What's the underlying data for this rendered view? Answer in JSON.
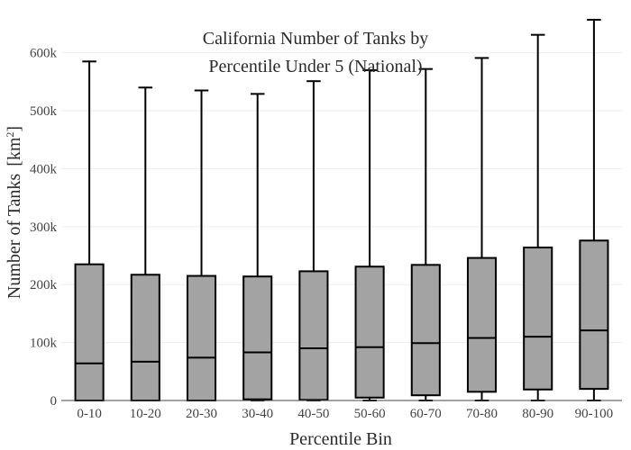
{
  "chart_data": {
    "type": "box",
    "title_lines": [
      "California Number of Tanks by",
      "Percentile Under 5 (National)"
    ],
    "xlabel": "Percentile Bin",
    "ylabel": "Number of Tanks",
    "ylabel_unit_base": "[km",
    "ylabel_unit_sup": "2",
    "ylabel_unit_close": "]",
    "ylim": [
      0,
      660000
    ],
    "yticks": [
      {
        "value": 0,
        "label": "0"
      },
      {
        "value": 100000,
        "label": "100k"
      },
      {
        "value": 200000,
        "label": "200k"
      },
      {
        "value": 300000,
        "label": "300k"
      },
      {
        "value": 400000,
        "label": "400k"
      },
      {
        "value": 500000,
        "label": "500k"
      },
      {
        "value": 600000,
        "label": "600k"
      }
    ],
    "grid": true,
    "box_fill": "#a3a3a3",
    "box_line": "#000000",
    "categories": [
      "0-10",
      "10-20",
      "20-30",
      "30-40",
      "40-50",
      "50-60",
      "60-70",
      "70-80",
      "80-90",
      "90-100"
    ],
    "boxes": [
      {
        "min": 0,
        "q1": 0,
        "median": 64000,
        "q3": 235000,
        "max": 585000
      },
      {
        "min": 0,
        "q1": 0,
        "median": 67000,
        "q3": 217000,
        "max": 540000
      },
      {
        "min": 0,
        "q1": 0,
        "median": 74000,
        "q3": 215000,
        "max": 535000
      },
      {
        "min": 0,
        "q1": 2000,
        "median": 83000,
        "q3": 214000,
        "max": 529000
      },
      {
        "min": 0,
        "q1": 1000,
        "median": 90000,
        "q3": 223000,
        "max": 551000
      },
      {
        "min": 0,
        "q1": 5000,
        "median": 92000,
        "q3": 231000,
        "max": 570000
      },
      {
        "min": 0,
        "q1": 9000,
        "median": 99000,
        "q3": 234000,
        "max": 572000
      },
      {
        "min": 0,
        "q1": 15000,
        "median": 108000,
        "q3": 246000,
        "max": 591000
      },
      {
        "min": 0,
        "q1": 19000,
        "median": 110000,
        "q3": 264000,
        "max": 631000
      },
      {
        "min": 0,
        "q1": 20000,
        "median": 121000,
        "q3": 276000,
        "max": 657000
      }
    ]
  }
}
